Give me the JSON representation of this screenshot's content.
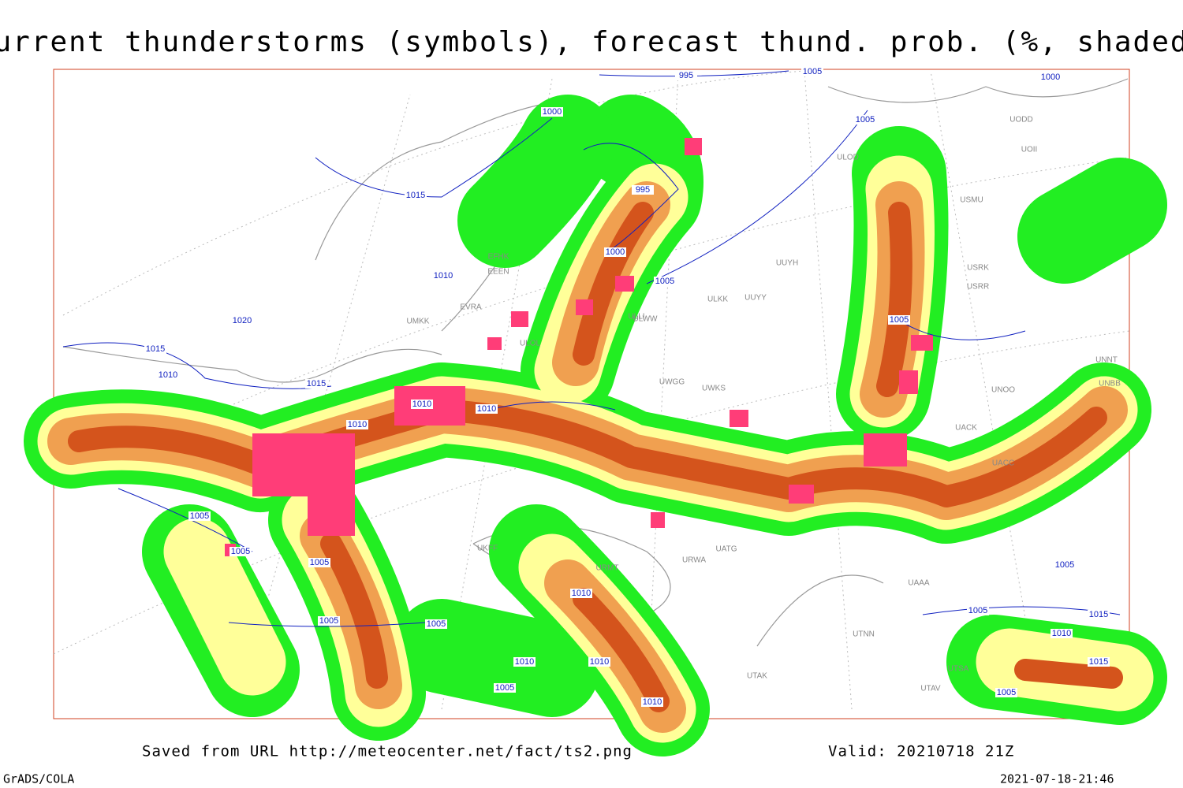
{
  "title": "Current thunderstorms (symbols), forecast thund. prob. (%, shaded)",
  "footer": {
    "saved": "Saved from URL http://meteocenter.net/fact/ts2.png",
    "valid": "Valid: 20210718 21Z",
    "software": "GrADS/COLA",
    "timestamp": "2021-07-18-21:46"
  },
  "isobar_labels": [
    "995",
    "1005",
    "1000",
    "1000",
    "1005",
    "995",
    "1015",
    "1010",
    "1000",
    "1005",
    "1020",
    "1015",
    "1010",
    "1015",
    "1010",
    "1010",
    "1010",
    "1005",
    "1005",
    "1005",
    "1005",
    "1010",
    "1005",
    "1005",
    "1010",
    "1010",
    "1010",
    "1005",
    "1005",
    "1005",
    "1015",
    "1010",
    "1015",
    "1005"
  ],
  "stations": [
    "EFHK",
    "EEEN",
    "EVRA",
    "UMKK",
    "ULOL",
    "ULLI",
    "ULKK",
    "UUYY",
    "ULWW",
    "UUYH",
    "UWGG",
    "UWKS",
    "UACK",
    "UNOO",
    "UNBB",
    "UNNT",
    "UACC",
    "USRR",
    "USRK",
    "USMU",
    "ULOD",
    "UOII",
    "UODD",
    "URMT",
    "UATG",
    "UTAK",
    "UTNN",
    "UTSA",
    "UTAV",
    "UKFF",
    "URWA",
    "UAAA"
  ]
}
